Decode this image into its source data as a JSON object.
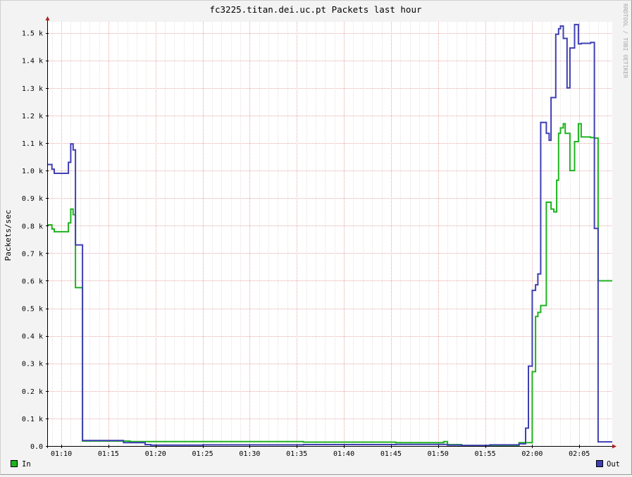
{
  "chart_data": {
    "type": "line",
    "title": "fc3225.titan.dei.uc.pt Packets last hour",
    "ylabel": "Packets/sec",
    "xlabel": "",
    "watermark": "RRDTOOL / TOBI OETIKER",
    "ylim": [
      0,
      1540
    ],
    "xlim": [
      68.5,
      128.5
    ],
    "y_ticks": [
      {
        "value": 0,
        "label": "0.0"
      },
      {
        "value": 100,
        "label": "0.1 k"
      },
      {
        "value": 200,
        "label": "0.2 k"
      },
      {
        "value": 300,
        "label": "0.3 k"
      },
      {
        "value": 400,
        "label": "0.4 k"
      },
      {
        "value": 500,
        "label": "0.5 k"
      },
      {
        "value": 600,
        "label": "0.6 k"
      },
      {
        "value": 700,
        "label": "0.7 k"
      },
      {
        "value": 800,
        "label": "0.8 k"
      },
      {
        "value": 900,
        "label": "0.9 k"
      },
      {
        "value": 1000,
        "label": "1.0 k"
      },
      {
        "value": 1100,
        "label": "1.1 k"
      },
      {
        "value": 1200,
        "label": "1.2 k"
      },
      {
        "value": 1300,
        "label": "1.3 k"
      },
      {
        "value": 1400,
        "label": "1.4 k"
      },
      {
        "value": 1500,
        "label": "1.5 k"
      }
    ],
    "x_ticks": [
      {
        "value": 70,
        "label": "01:10"
      },
      {
        "value": 75,
        "label": "01:15"
      },
      {
        "value": 80,
        "label": "01:20"
      },
      {
        "value": 85,
        "label": "01:25"
      },
      {
        "value": 90,
        "label": "01:30"
      },
      {
        "value": 95,
        "label": "01:35"
      },
      {
        "value": 100,
        "label": "01:40"
      },
      {
        "value": 105,
        "label": "01:45"
      },
      {
        "value": 110,
        "label": "01:50"
      },
      {
        "value": 115,
        "label": "01:55"
      },
      {
        "value": 120,
        "label": "02:00"
      },
      {
        "value": 125,
        "label": "02:05"
      }
    ],
    "x_minor_step": 1,
    "grid": true,
    "step": true,
    "legend_position": "bottom",
    "series": [
      {
        "name": "In",
        "color": "#1fb31f",
        "x": [
          68.5,
          69.0,
          69.25,
          70.75,
          71.0,
          71.25,
          71.5,
          72.25,
          76.6,
          77.3,
          95.7,
          105.5,
          110.6,
          111.0,
          112.5,
          115.5,
          118.6,
          120.0,
          120.35,
          120.6,
          120.9,
          121.5,
          122.0,
          122.3,
          122.6,
          122.8,
          123.0,
          123.3,
          123.5,
          124.0,
          124.5,
          124.9,
          125.2,
          126.2,
          126.6,
          127.0,
          127.3
        ],
        "y": [
          803,
          788,
          778,
          810,
          860,
          840,
          575,
          18,
          18,
          16,
          14,
          12,
          16,
          5,
          2,
          2,
          12,
          270,
          470,
          485,
          510,
          885,
          860,
          850,
          965,
          1135,
          1155,
          1170,
          1135,
          1000,
          1105,
          1170,
          1122,
          1120,
          1118,
          600,
          600
        ]
      },
      {
        "name": "Out",
        "color": "#3f3fb5",
        "x": [
          68.5,
          69.0,
          69.25,
          70.75,
          71.0,
          71.25,
          71.5,
          72.25,
          76.6,
          78.9,
          79.5,
          85.0,
          95.7,
          105.5,
          111.0,
          112.5,
          115.5,
          118.6,
          119.3,
          119.6,
          120.0,
          120.35,
          120.6,
          120.9,
          121.5,
          121.8,
          122.0,
          122.5,
          122.8,
          123.0,
          123.3,
          123.7,
          124.0,
          124.5,
          124.9,
          125.2,
          126.2,
          126.6,
          127.0,
          127.3,
          127.6
        ],
        "y": [
          1022,
          1005,
          990,
          1030,
          1097,
          1075,
          730,
          20,
          12,
          5,
          3,
          4,
          5,
          6,
          3,
          2,
          4,
          8,
          65,
          290,
          565,
          585,
          625,
          1175,
          1135,
          1110,
          1265,
          1495,
          1515,
          1525,
          1480,
          1300,
          1445,
          1530,
          1460,
          1462,
          1465,
          790,
          15,
          15,
          15
        ]
      }
    ]
  }
}
